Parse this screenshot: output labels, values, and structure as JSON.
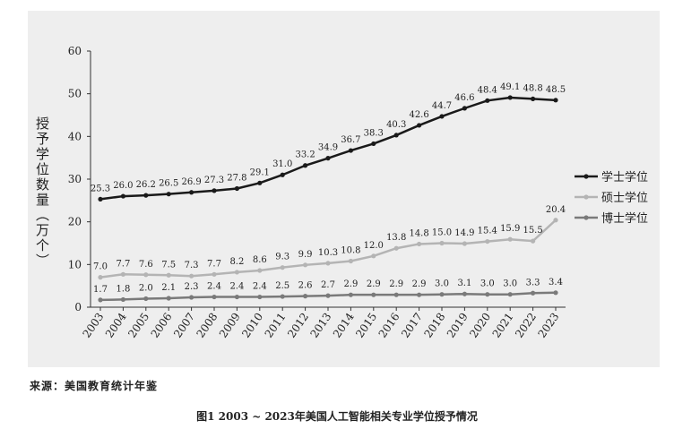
{
  "source_note": "来源：美国教育统计年鉴",
  "caption": "图1  2003 ~ 2023年美国人工智能相关专业学位授予情况",
  "chart_data": {
    "type": "line",
    "title": "",
    "ylabel": "授予学位数量（万个）",
    "xlabel": "",
    "ylim": [
      0,
      60
    ],
    "yticks": [
      0,
      10,
      20,
      30,
      40,
      50,
      60
    ],
    "grid": false,
    "legend_position": "right",
    "categories": [
      "2003",
      "2004",
      "2005",
      "2006",
      "2007",
      "2008",
      "2009",
      "2010",
      "2011",
      "2012",
      "2013",
      "2014",
      "2015",
      "2016",
      "2017",
      "2018",
      "2019",
      "2020",
      "2021",
      "2022",
      "2023"
    ],
    "series": [
      {
        "name": "学士学位",
        "color": "#1a1a1a",
        "values": [
          25.3,
          26.0,
          26.2,
          26.5,
          26.9,
          27.3,
          27.8,
          29.1,
          31.0,
          33.2,
          34.9,
          36.7,
          38.3,
          40.3,
          42.6,
          44.7,
          46.6,
          48.4,
          49.1,
          48.8,
          48.5
        ],
        "labels": [
          "25.3",
          "26.0",
          "26.2",
          "26.5",
          "26.9",
          "27.3",
          "27.8",
          "29.1",
          "31.0",
          "33.2",
          "34.9",
          "36.7",
          "38.3",
          "40.3",
          "42.6",
          "44.7",
          "46.6",
          "48.4",
          "49.1",
          "48.8",
          "48.5"
        ]
      },
      {
        "name": "硕士学位",
        "color": "#b4b4b4",
        "values": [
          7.0,
          7.7,
          7.6,
          7.5,
          7.3,
          7.7,
          8.2,
          8.6,
          9.3,
          9.9,
          10.3,
          10.8,
          12.0,
          13.8,
          14.8,
          15.0,
          14.9,
          15.4,
          15.9,
          15.5,
          20.4
        ],
        "labels": [
          "7.0",
          "7.7",
          "7.6",
          "7.5",
          "7.3",
          "7.7",
          "8.2",
          "8.6",
          "9.3",
          "9.9",
          "10.3",
          "10.8",
          "12.0",
          "13.8",
          "14.8",
          "15.0",
          "14.9",
          "15.4",
          "15.9",
          "15.5",
          "20.4"
        ]
      },
      {
        "name": "博士学位",
        "color": "#7a7a7a",
        "values": [
          1.7,
          1.8,
          2.0,
          2.1,
          2.3,
          2.4,
          2.4,
          2.4,
          2.5,
          2.6,
          2.7,
          2.9,
          2.9,
          2.9,
          2.9,
          3.0,
          3.1,
          3.0,
          3.0,
          3.3,
          3.4
        ],
        "labels": [
          "1.7",
          "1.8",
          "2.0",
          "2.1",
          "2.3",
          "2.4",
          "2.4",
          "2.4",
          "2.5",
          "2.6",
          "2.7",
          "2.9",
          "2.9",
          "2.9",
          "2.9",
          "3.0",
          "3.1",
          "3.0",
          "3.0",
          "3.3",
          "3.4"
        ]
      }
    ]
  }
}
